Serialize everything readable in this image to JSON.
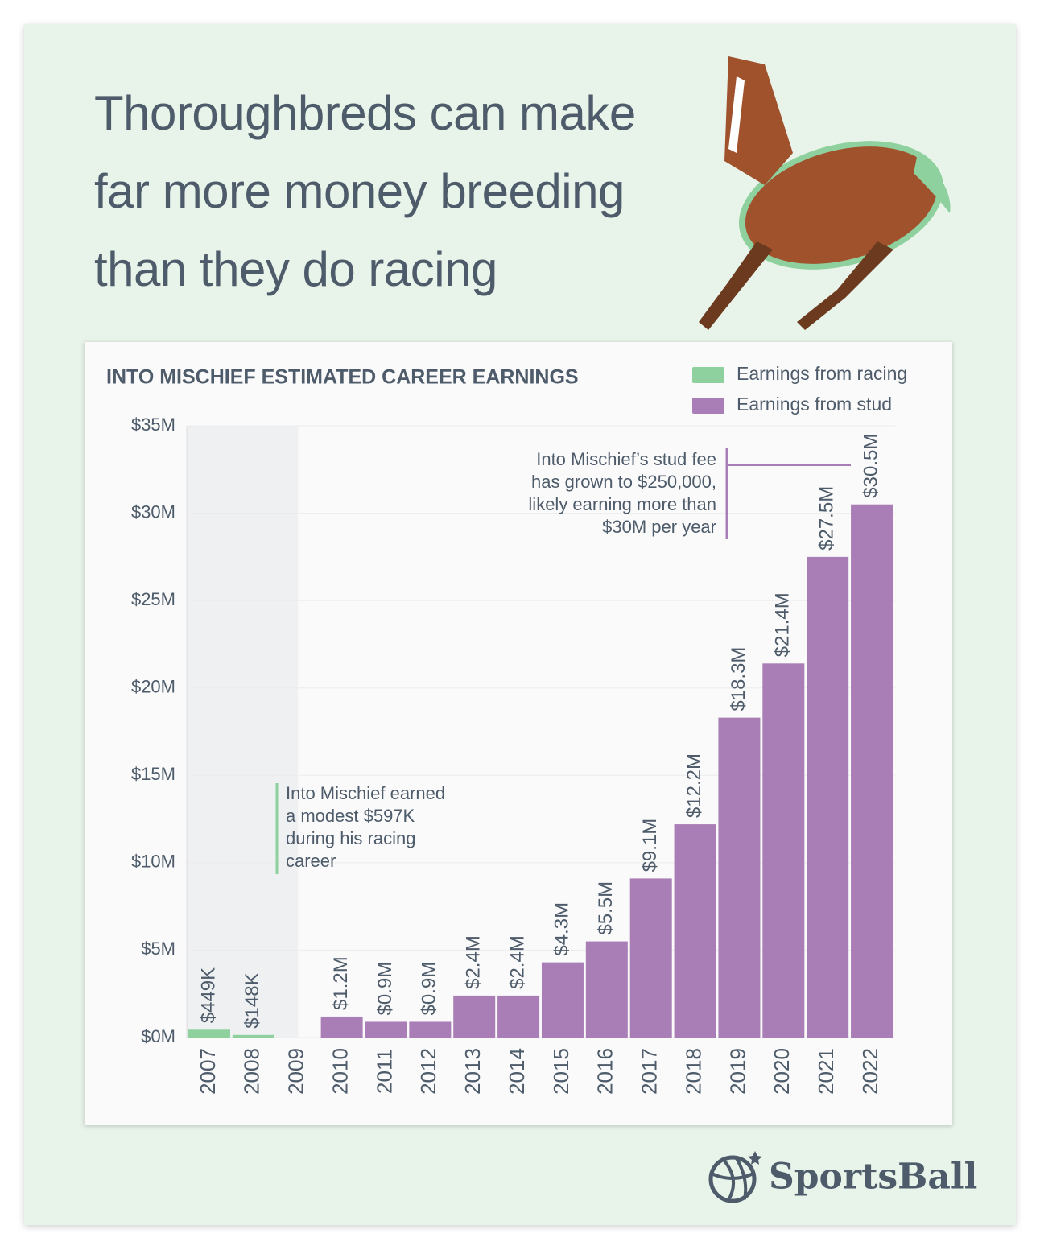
{
  "header": {
    "title": "Thoroughbreds can make far more money breeding than they do racing"
  },
  "chart_data": {
    "type": "bar",
    "title": "INTO MISCHIEF ESTIMATED CAREER EARNINGS",
    "categories": [
      "2007",
      "2008",
      "2009",
      "2010",
      "2011",
      "2012",
      "2013",
      "2014",
      "2015",
      "2016",
      "2017",
      "2018",
      "2019",
      "2020",
      "2021",
      "2022"
    ],
    "series": [
      {
        "name": "Earnings from racing",
        "color": "#8fd19e",
        "values": [
          0.449,
          0.148,
          null,
          null,
          null,
          null,
          null,
          null,
          null,
          null,
          null,
          null,
          null,
          null,
          null,
          null
        ],
        "value_labels": [
          "$449K",
          "$148K",
          null,
          null,
          null,
          null,
          null,
          null,
          null,
          null,
          null,
          null,
          null,
          null,
          null,
          null
        ]
      },
      {
        "name": "Earnings from stud",
        "color": "#a97db5",
        "values": [
          null,
          null,
          null,
          1.2,
          0.9,
          0.9,
          2.4,
          2.4,
          4.3,
          5.5,
          9.1,
          12.2,
          18.3,
          21.4,
          27.5,
          30.5
        ],
        "value_labels": [
          null,
          null,
          null,
          "$1.2M",
          "$0.9M",
          "$0.9M",
          "$2.4M",
          "$2.4M",
          "$4.3M",
          "$5.5M",
          "$9.1M",
          "$12.2M",
          "$18.3M",
          "$21.4M",
          "$27.5M",
          "$30.5M"
        ]
      }
    ],
    "ylim": [
      0,
      35
    ],
    "yticks": [
      {
        "value": 0,
        "label": "$0M"
      },
      {
        "value": 5,
        "label": "$5M"
      },
      {
        "value": 10,
        "label": "$10M"
      },
      {
        "value": 15,
        "label": "$15M"
      },
      {
        "value": 20,
        "label": "$20M"
      },
      {
        "value": 25,
        "label": "$25M"
      },
      {
        "value": 30,
        "label": "$30M"
      },
      {
        "value": 35,
        "label": "$35M"
      }
    ],
    "grid": true,
    "legend": "top-right",
    "annotations": [
      {
        "lines": [
          "Into Mischief earned",
          "a modest $597K",
          "during his racing",
          "career"
        ]
      },
      {
        "lines": [
          "Into Mischief’s stud fee",
          "has grown to $250,000,",
          "likely earning more than",
          "$30M per year"
        ]
      }
    ]
  },
  "footer": {
    "brand": "SportsBall"
  }
}
